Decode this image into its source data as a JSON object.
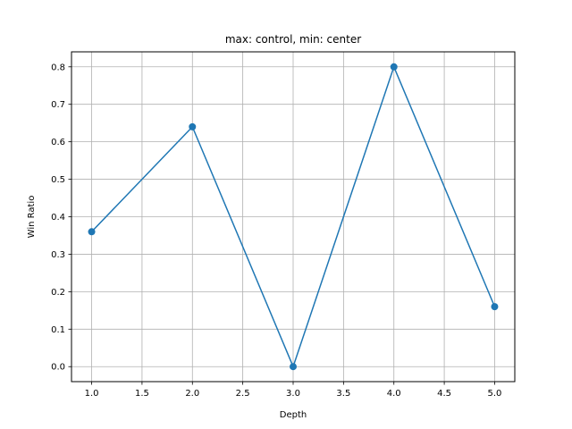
{
  "chart_data": {
    "type": "line",
    "title": "max: control, min: center",
    "xlabel": "Depth",
    "ylabel": "Win Ratio",
    "x": [
      1.0,
      2.0,
      3.0,
      4.0,
      5.0
    ],
    "series": [
      {
        "values": [
          0.36,
          0.64,
          0.0,
          0.8,
          0.16
        ],
        "color": "#1f77b4",
        "marker": "circle"
      }
    ],
    "xlim": [
      0.8,
      5.2
    ],
    "ylim": [
      -0.04,
      0.84
    ],
    "xticks": [
      1.0,
      1.5,
      2.0,
      2.5,
      3.0,
      3.5,
      4.0,
      4.5,
      5.0
    ],
    "xtick_labels": [
      "1.0",
      "1.5",
      "2.0",
      "2.5",
      "3.0",
      "3.5",
      "4.0",
      "4.5",
      "5.0"
    ],
    "yticks": [
      0.0,
      0.1,
      0.2,
      0.3,
      0.4,
      0.5,
      0.6,
      0.7,
      0.8
    ],
    "ytick_labels": [
      "0.0",
      "0.1",
      "0.2",
      "0.3",
      "0.4",
      "0.5",
      "0.6",
      "0.7",
      "0.8"
    ],
    "grid": true,
    "grid_color": "#b0b0b0",
    "axis_color": "#000000"
  }
}
